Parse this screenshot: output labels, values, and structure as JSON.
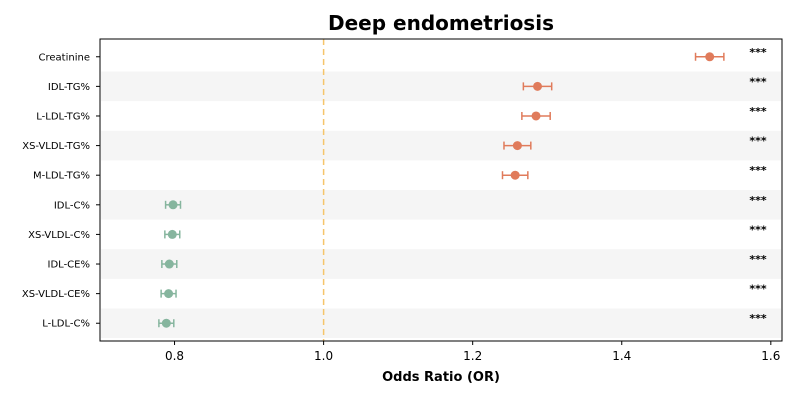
{
  "chart_data": {
    "type": "scatter",
    "title": "Deep endometriosis",
    "xlabel": "Odds Ratio (OR)",
    "ylabel": "",
    "xlim": [
      0.7,
      1.615
    ],
    "xticks": [
      "0.8",
      "1.0",
      "1.2",
      "1.4",
      "1.6"
    ],
    "reference_line": 1.0,
    "grid": false,
    "row_banding": true,
    "colors": {
      "risk": "#e07b5b",
      "protective": "#86b59e",
      "reference": "#f5c56b",
      "band": "#f5f5f5"
    },
    "rows": [
      {
        "label": "Creatinine",
        "or": 1.518,
        "ci_low": 1.499,
        "ci_high": 1.537,
        "sig": "***",
        "group": "risk"
      },
      {
        "label": "IDL-TG%",
        "or": 1.287,
        "ci_low": 1.268,
        "ci_high": 1.306,
        "sig": "***",
        "group": "risk"
      },
      {
        "label": "L-LDL-TG%",
        "or": 1.285,
        "ci_low": 1.266,
        "ci_high": 1.304,
        "sig": "***",
        "group": "risk"
      },
      {
        "label": "XS-VLDL-TG%",
        "or": 1.26,
        "ci_low": 1.242,
        "ci_high": 1.278,
        "sig": "***",
        "group": "risk"
      },
      {
        "label": "M-LDL-TG%",
        "or": 1.257,
        "ci_low": 1.24,
        "ci_high": 1.274,
        "sig": "***",
        "group": "risk"
      },
      {
        "label": "IDL-C%",
        "or": 0.798,
        "ci_low": 0.788,
        "ci_high": 0.808,
        "sig": "***",
        "group": "protective"
      },
      {
        "label": "XS-VLDL-C%",
        "or": 0.797,
        "ci_low": 0.787,
        "ci_high": 0.807,
        "sig": "***",
        "group": "protective"
      },
      {
        "label": "IDL-CE%",
        "or": 0.793,
        "ci_low": 0.783,
        "ci_high": 0.803,
        "sig": "***",
        "group": "protective"
      },
      {
        "label": "XS-VLDL-CE%",
        "or": 0.792,
        "ci_low": 0.782,
        "ci_high": 0.802,
        "sig": "***",
        "group": "protective"
      },
      {
        "label": "L-LDL-C%",
        "or": 0.789,
        "ci_low": 0.779,
        "ci_high": 0.799,
        "sig": "***",
        "group": "protective"
      }
    ]
  }
}
